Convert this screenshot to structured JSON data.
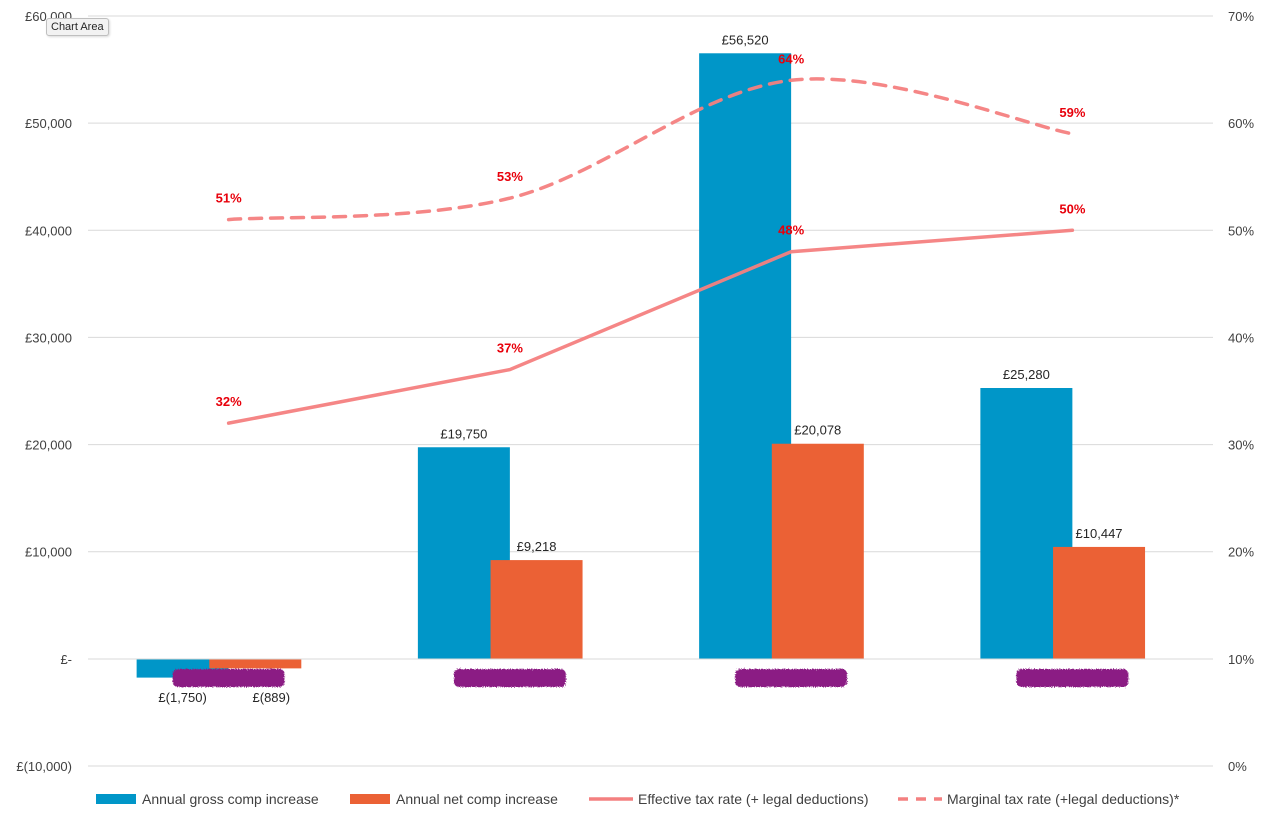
{
  "tooltip": "Chart Area",
  "chart_data": {
    "type": "bar",
    "categories": [
      "",
      "",
      "",
      ""
    ],
    "series": [
      {
        "name": "Annual gross comp increase",
        "kind": "bar",
        "axis": "left",
        "color": "#0096c8",
        "values": [
          -1750,
          19750,
          56520,
          25280
        ],
        "labels": [
          "£(1,750)",
          "£19,750",
          "£56,520",
          "£25,280"
        ]
      },
      {
        "name": "Annual net comp increase",
        "kind": "bar",
        "axis": "left",
        "color": "#eb6135",
        "values": [
          -889,
          9218,
          20078,
          10447
        ],
        "labels": [
          "£(889)",
          "£9,218",
          "£20,078",
          "£10,447"
        ]
      },
      {
        "name": "Effective tax rate (+ legal deductions)",
        "kind": "line",
        "axis": "right",
        "color": "#f48080",
        "dash": "solid",
        "values": [
          32,
          37,
          48,
          50
        ],
        "labels": [
          "32%",
          "37%",
          "48%",
          "50%"
        ]
      },
      {
        "name": "Marginal tax rate (+legal deductions)*",
        "kind": "line",
        "axis": "right",
        "color": "#f48080",
        "dash": "dashed",
        "values": [
          51,
          53,
          64,
          59
        ],
        "labels": [
          "51%",
          "53%",
          "64%",
          "59%"
        ]
      }
    ],
    "y_left": {
      "range": [
        -10000,
        60000
      ],
      "ticks": [
        -10000,
        0,
        10000,
        20000,
        30000,
        40000,
        50000,
        60000
      ],
      "tick_labels": [
        "£(10,000)",
        "£-",
        "£10,000",
        "£20,000",
        "£30,000",
        "£40,000",
        "£50,000",
        "£60,000"
      ]
    },
    "y_right": {
      "range": [
        0,
        70
      ],
      "ticks": [
        0,
        10,
        20,
        30,
        40,
        50,
        60,
        70
      ],
      "tick_labels": [
        "0%",
        "10%",
        "20%",
        "30%",
        "40%",
        "50%",
        "60%",
        "70%"
      ]
    },
    "grid": true,
    "legend_position": "bottom",
    "category_labels_redacted": true
  }
}
